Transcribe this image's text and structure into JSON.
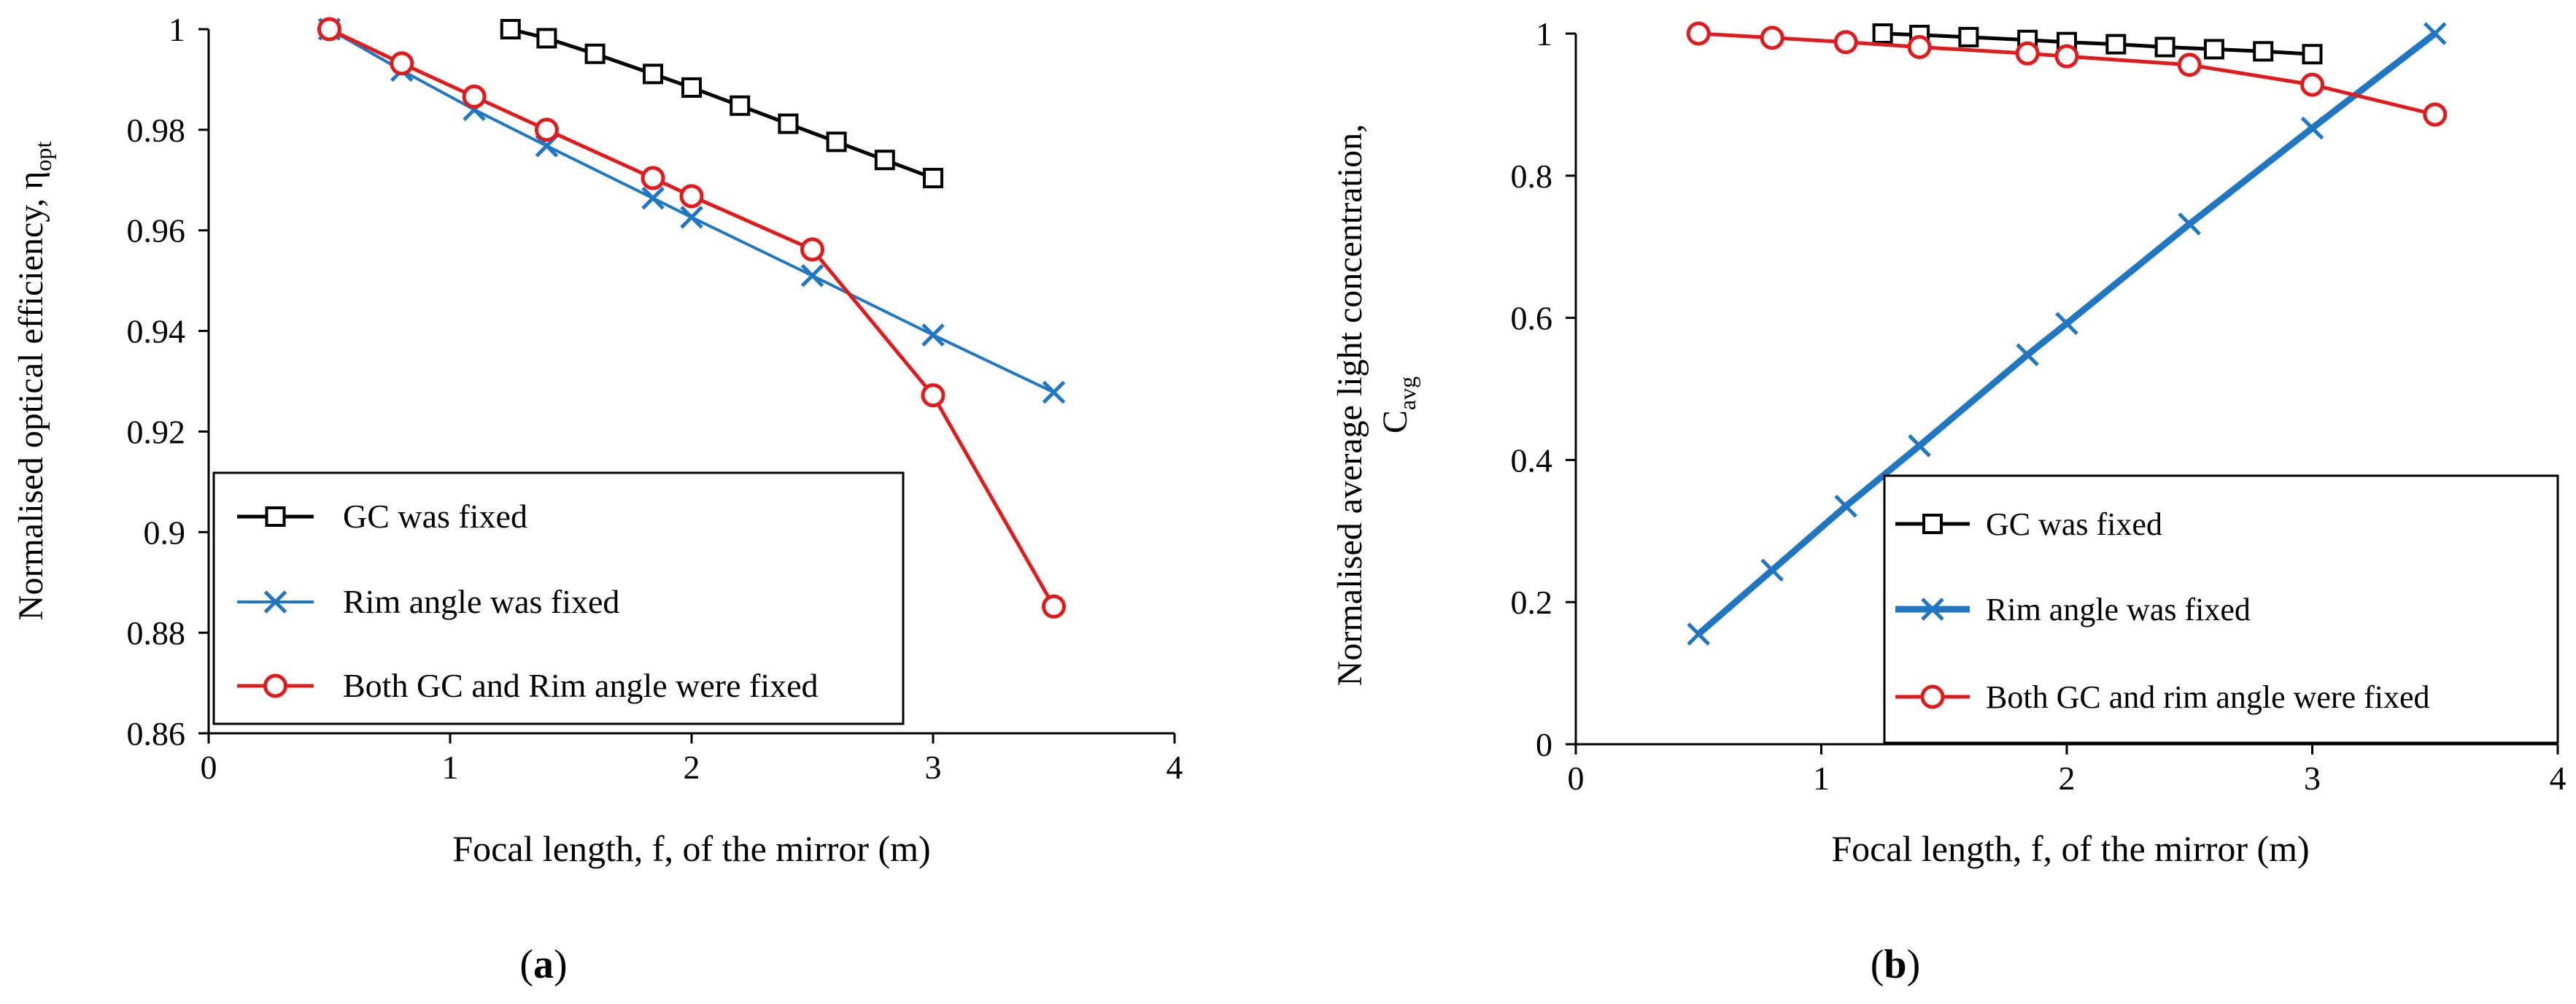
{
  "chart_data": [
    {
      "type": "line",
      "panel_label_prefix": "(",
      "panel_label": "a",
      "panel_label_suffix": ")",
      "ylabel": "Normalised optical efficiency, η",
      "ylabel_sub": "opt",
      "xlabel": "Focal length, f, of the mirror (m)",
      "xlim": [
        0,
        4
      ],
      "ylim": [
        0.86,
        1.0
      ],
      "xticks": [
        0,
        1,
        2,
        3,
        4
      ],
      "yticks": [
        0.86,
        0.88,
        0.9,
        0.92,
        0.94,
        0.96,
        0.98,
        1.0
      ],
      "xtick_labels": [
        "0",
        "1",
        "2",
        "3",
        "4"
      ],
      "ytick_labels": [
        "0.86",
        "0.88",
        "0.9",
        "0.92",
        "0.94",
        "0.96",
        "0.98",
        "1"
      ],
      "grid": false,
      "legend_position": "lower-left",
      "series": [
        {
          "name": "GC was fixed",
          "color": "#000000",
          "marker": "square",
          "x": [
            1.25,
            1.4,
            1.6,
            1.84,
            2.0,
            2.2,
            2.4,
            2.6,
            2.8,
            3.0
          ],
          "y": [
            1.0,
            0.9982,
            0.9951,
            0.9911,
            0.9884,
            0.9848,
            0.9812,
            0.9776,
            0.974,
            0.9704
          ]
        },
        {
          "name": "Rim angle was fixed",
          "color": "#1f77c4",
          "marker": "x",
          "x": [
            0.5,
            0.8,
            1.1,
            1.4,
            1.84,
            2.0,
            2.5,
            3.0,
            3.5
          ],
          "y": [
            1.0,
            0.9918,
            0.984,
            0.9768,
            0.9664,
            0.9626,
            0.951,
            0.9392,
            0.9278
          ]
        },
        {
          "name": "Both GC and Rim angle were fixed",
          "color": "#e31a1c",
          "marker": "circle",
          "x": [
            0.5,
            0.8,
            1.1,
            1.4,
            1.84,
            2.0,
            2.5,
            3.0,
            3.5
          ],
          "y": [
            1.0,
            0.9932,
            0.9866,
            0.98,
            0.9704,
            0.9668,
            0.9562,
            0.9272,
            0.8852
          ]
        }
      ]
    },
    {
      "type": "line",
      "panel_label_prefix": "(",
      "panel_label": "b",
      "panel_label_suffix": ")",
      "ylabel_line1": "Normalised average light concentration,",
      "ylabel_line2": "C",
      "ylabel_sub": "avg",
      "xlabel": "Focal length, f, of the mirror (m)",
      "xlim": [
        0,
        4
      ],
      "ylim": [
        0,
        1.0
      ],
      "xticks": [
        0,
        1,
        2,
        3,
        4
      ],
      "yticks": [
        0,
        0.2,
        0.4,
        0.6,
        0.8,
        1.0
      ],
      "xtick_labels": [
        "0",
        "1",
        "2",
        "3",
        "4"
      ],
      "ytick_labels": [
        "0",
        "0.2",
        "0.4",
        "0.6",
        "0.8",
        "1"
      ],
      "grid": false,
      "legend_position": "lower-right",
      "series": [
        {
          "name": "GC was fixed",
          "color": "#000000",
          "marker": "square",
          "x": [
            1.25,
            1.4,
            1.6,
            1.84,
            2.0,
            2.2,
            2.4,
            2.6,
            2.8,
            3.0
          ],
          "y": [
            1.0,
            0.998,
            0.995,
            0.991,
            0.988,
            0.985,
            0.981,
            0.978,
            0.975,
            0.971
          ]
        },
        {
          "name": "Rim angle was fixed",
          "color": "#1f77c4",
          "marker": "x",
          "x": [
            0.5,
            0.8,
            1.1,
            1.4,
            1.84,
            2.0,
            2.5,
            3.0,
            3.5
          ],
          "y": [
            0.155,
            0.245,
            0.335,
            0.42,
            0.548,
            0.592,
            0.732,
            0.867,
            1.0
          ]
        },
        {
          "name": "Both GC and rim angle were fixed",
          "color": "#e31a1c",
          "marker": "circle",
          "x": [
            0.5,
            0.8,
            1.1,
            1.4,
            1.84,
            2.0,
            2.5,
            3.0,
            3.5
          ],
          "y": [
            1.0,
            0.994,
            0.988,
            0.981,
            0.972,
            0.968,
            0.956,
            0.928,
            0.886
          ]
        }
      ]
    }
  ]
}
